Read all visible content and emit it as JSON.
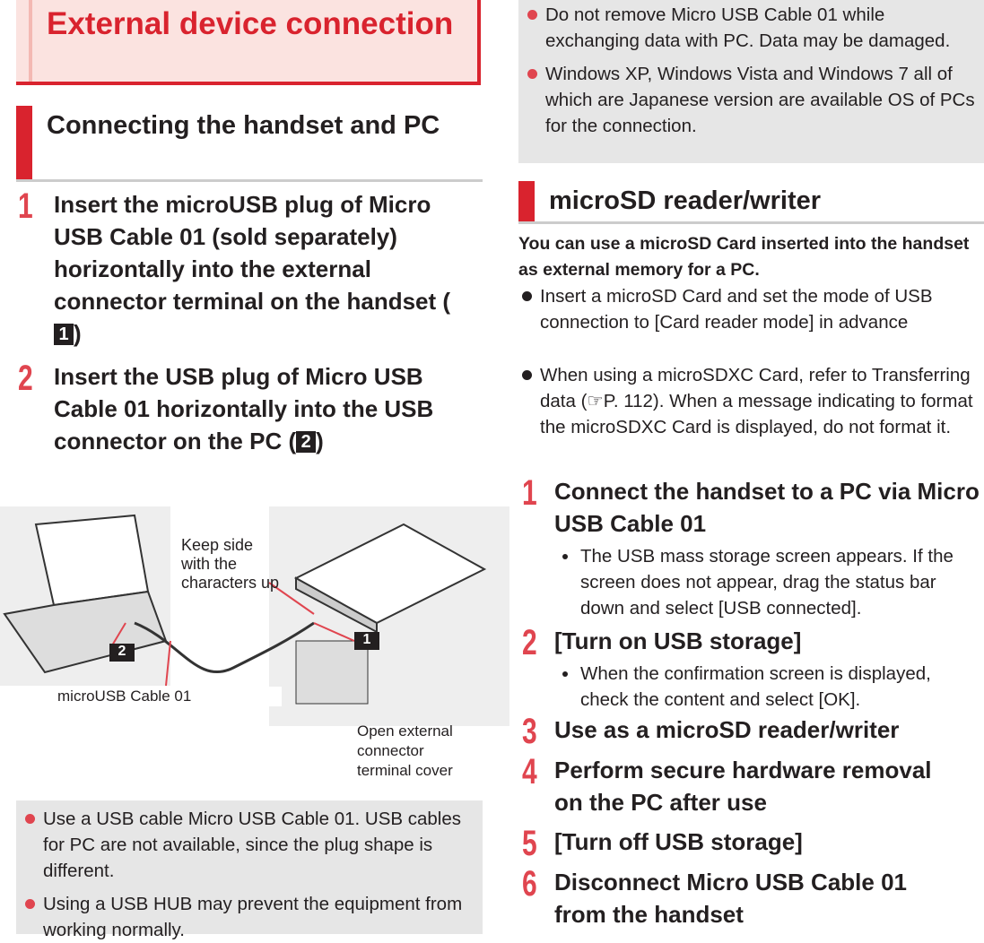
{
  "left": {
    "title": "External device connection",
    "section": "Connecting the handset and PC",
    "steps": [
      {
        "num": "1",
        "text": "Insert the microUSB plug of Micro USB Cable 01 (sold separately) horizontally into the external connector terminal on the handset (",
        "icon": "1",
        "after": ")"
      },
      {
        "num": "2",
        "text": "Insert the USB plug of Micro USB Cable 01 horizontally into the USB connector on the PC (",
        "icon": "2",
        "after": ")"
      }
    ],
    "figure": {
      "keep_side": "Keep side with the characters up",
      "cable": "microUSB Cable 01",
      "cover": "Open external connector terminal cover",
      "marker_1": "1",
      "marker_2": "2"
    },
    "notes": [
      "Use a USB cable Micro USB Cable 01. USB cables for PC are not available, since the plug shape is different.",
      "Using a USB HUB may prevent the equipment from working normally."
    ]
  },
  "right": {
    "notes": [
      "Do not remove Micro USB Cable 01 while exchanging data with PC. Data may be damaged.",
      "Windows XP, Windows Vista and Windows 7 all of which are Japanese version are available OS of PCs for the connection."
    ],
    "section": "microSD reader/writer",
    "intro": "You can use a microSD Card inserted into the handset as external memory for a PC.",
    "bullets": [
      "Insert a microSD Card and set the mode of USB connection to [Card reader mode] in advance",
      "When using a microSDXC Card, refer to Transferring data (☞P. 112). When a message indicating to format the microSDXC Card is displayed, do not format it."
    ],
    "steps": [
      {
        "num": "1",
        "text": "Connect the handset to a PC via Micro USB Cable 01",
        "sub": "The USB mass storage screen appears. If the screen does not appear, drag the status bar down and select [USB connected]."
      },
      {
        "num": "2",
        "text": "[Turn on USB storage]",
        "sub": "When the confirmation screen is displayed, check the content and select [OK]."
      },
      {
        "num": "3",
        "text": "Use as a microSD reader/writer"
      },
      {
        "num": "4",
        "text": "Perform secure hardware removal on the PC after use"
      },
      {
        "num": "5",
        "text": "[Turn off USB storage]"
      },
      {
        "num": "6",
        "text": "Disconnect Micro USB Cable 01 from the handset"
      }
    ]
  }
}
